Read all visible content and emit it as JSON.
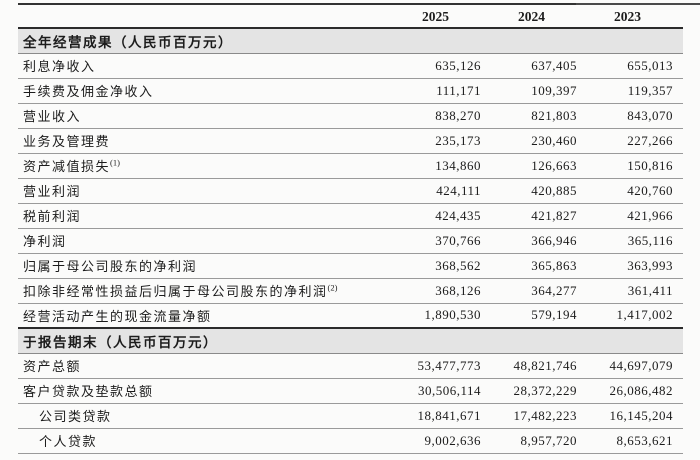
{
  "colors": {
    "section_band": "#e4e4e4",
    "rule_dark": "#2b2b2b",
    "rule_light": "#9a9a9a",
    "text": "#1c1c1c",
    "page_bg": "#fbfbfa"
  },
  "table": {
    "years": [
      "2025",
      "2024",
      "2023"
    ],
    "rows": [
      {
        "type": "section",
        "label": "全年经营成果（人民币百万元）"
      },
      {
        "type": "data",
        "label": "利息净收入",
        "values": [
          "635,126",
          "637,405",
          "655,013"
        ]
      },
      {
        "type": "data",
        "label": "手续费及佣金净收入",
        "values": [
          "111,171",
          "109,397",
          "119,357"
        ]
      },
      {
        "type": "data",
        "label": "营业收入",
        "values": [
          "838,270",
          "821,803",
          "843,070"
        ]
      },
      {
        "type": "data",
        "label": "业务及管理费",
        "values": [
          "235,173",
          "230,460",
          "227,266"
        ]
      },
      {
        "type": "data",
        "label": "资产减值损失",
        "sup": "(1)",
        "values": [
          "134,860",
          "126,663",
          "150,816"
        ]
      },
      {
        "type": "data",
        "label": "营业利润",
        "values": [
          "424,111",
          "420,885",
          "420,760"
        ]
      },
      {
        "type": "data",
        "label": "税前利润",
        "values": [
          "424,435",
          "421,827",
          "421,966"
        ]
      },
      {
        "type": "data",
        "label": "净利润",
        "values": [
          "370,766",
          "366,946",
          "365,116"
        ]
      },
      {
        "type": "data",
        "label": "归属于母公司股东的净利润",
        "values": [
          "368,562",
          "365,863",
          "363,993"
        ]
      },
      {
        "type": "data",
        "label": "扣除非经常性损益后归属于母公司股东的净利润",
        "sup": "(2)",
        "values": [
          "368,126",
          "364,277",
          "361,411"
        ]
      },
      {
        "type": "data",
        "label": "经营活动产生的现金流量净额",
        "values": [
          "1,890,530",
          "579,194",
          "1,417,002"
        ]
      },
      {
        "type": "section",
        "label": "于报告期末（人民币百万元）"
      },
      {
        "type": "data",
        "label": "资产总额",
        "values": [
          "53,477,773",
          "48,821,746",
          "44,697,079"
        ]
      },
      {
        "type": "data",
        "label": "客户贷款及垫款总额",
        "values": [
          "30,506,114",
          "28,372,229",
          "26,086,482"
        ]
      },
      {
        "type": "data",
        "label": "公司类贷款",
        "indent": true,
        "values": [
          "18,841,671",
          "17,482,223",
          "16,145,204"
        ]
      },
      {
        "type": "data",
        "label": "个人贷款",
        "indent": true,
        "values": [
          "9,002,636",
          "8,957,720",
          "8,653,621"
        ]
      }
    ]
  }
}
